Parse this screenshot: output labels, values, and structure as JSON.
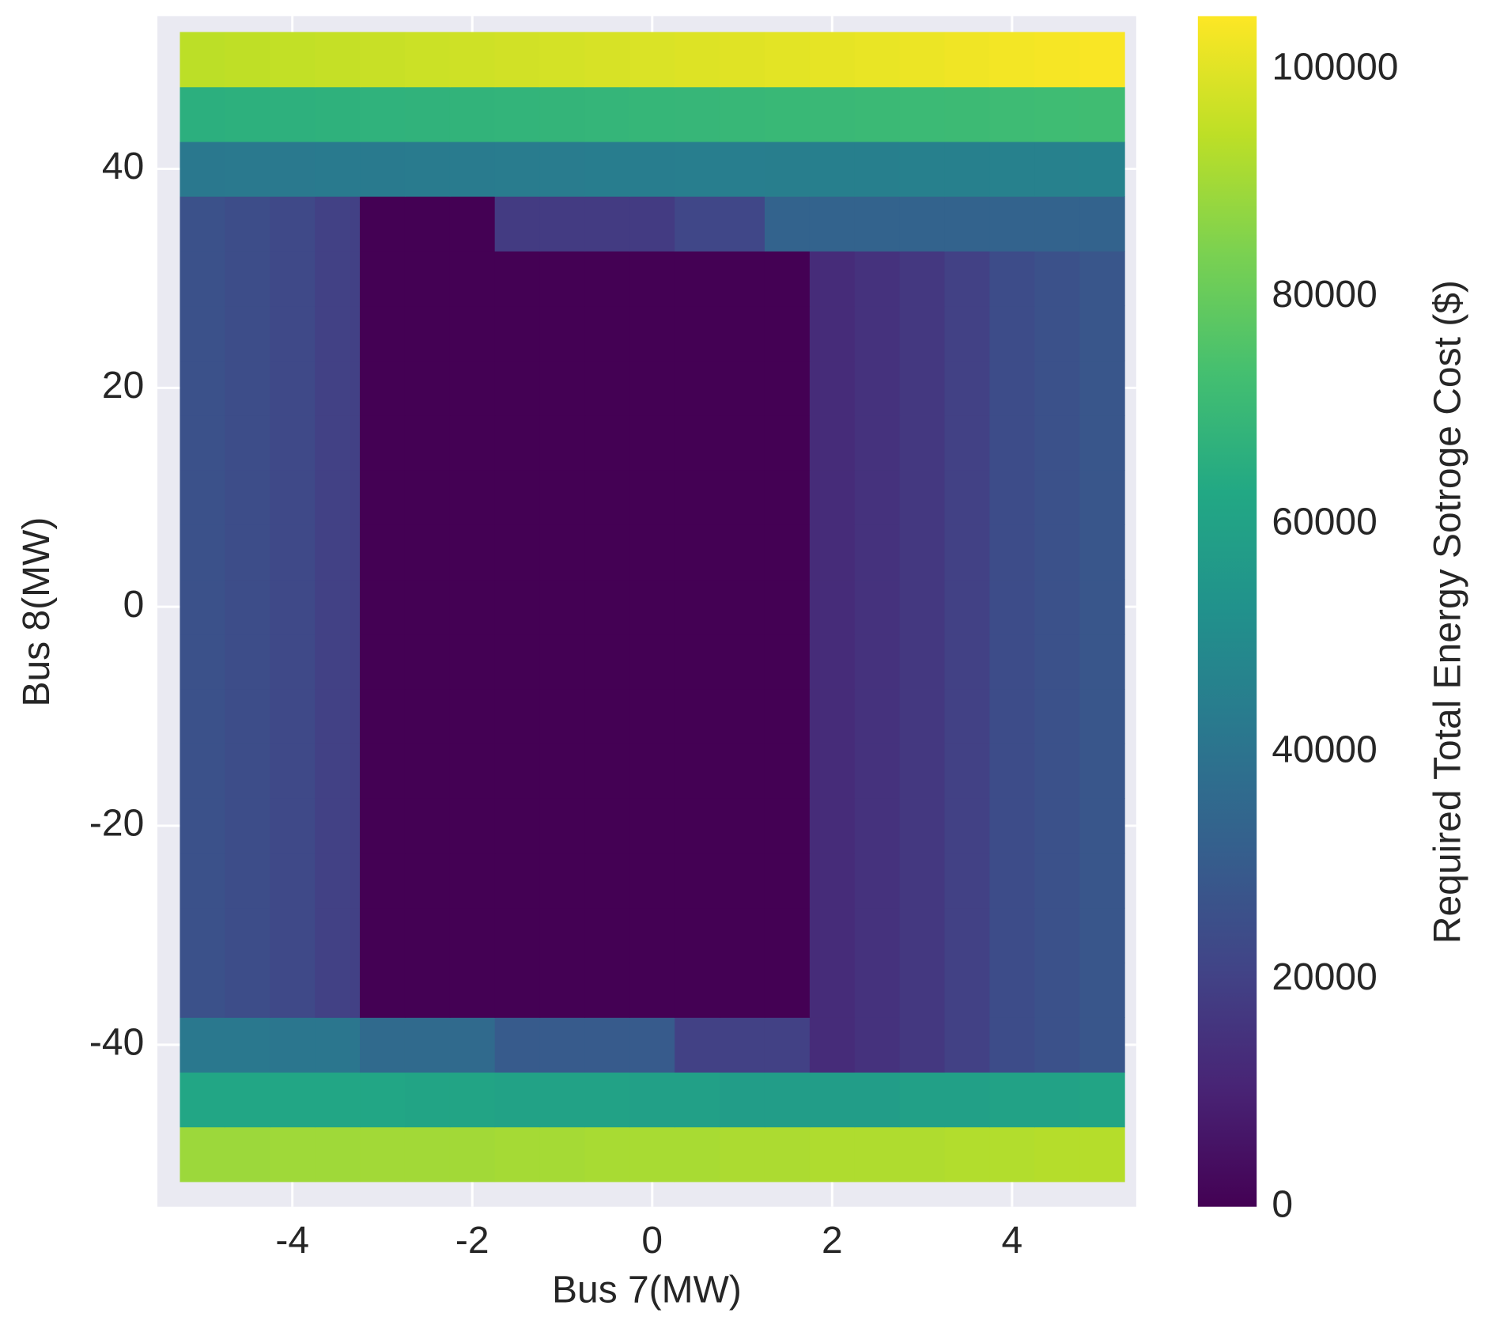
{
  "chart_data": {
    "type": "heatmap",
    "xlabel": "Bus 7(MW)",
    "ylabel": "Bus 8(MW)",
    "colorbar_label": "Required Total Energy Sotroge Cost ($)",
    "colormap": "viridis",
    "xlim": [
      -5.5,
      5.38
    ],
    "ylim": [
      -54.8,
      53.95
    ],
    "xticks": [
      -4,
      -2,
      0,
      2,
      4
    ],
    "yticks": [
      -40,
      -20,
      0,
      20,
      40
    ],
    "clim": [
      0,
      104700
    ],
    "cticks": [
      0,
      20000,
      40000,
      60000,
      80000,
      100000
    ],
    "grid": true,
    "x": [
      -5,
      -4.5,
      -4,
      -3.5,
      -3,
      -2.5,
      -2,
      -1.5,
      -1,
      -0.5,
      0,
      0.5,
      1,
      1.5,
      2,
      2.5,
      3,
      3.5,
      4,
      4.5,
      5
    ],
    "y": [
      -50,
      -45,
      -40,
      -35,
      -30,
      -25,
      -20,
      -15,
      -10,
      -5,
      0,
      5,
      10,
      15,
      20,
      25,
      30,
      35,
      40,
      45,
      50
    ],
    "z": [
      [
        89000,
        89000,
        89500,
        89500,
        90000,
        90000,
        90000,
        90500,
        90500,
        91000,
        91000,
        91000,
        91500,
        91500,
        92000,
        92000,
        92000,
        92500,
        92500,
        93000,
        93000
      ],
      [
        62000,
        62000,
        62000,
        62000,
        62000,
        61000,
        61000,
        60000,
        60000,
        60000,
        59000,
        59000,
        58000,
        58000,
        58000,
        58000,
        59000,
        59000,
        60000,
        60000,
        61000
      ],
      [
        42000,
        42000,
        41000,
        41000,
        36000,
        36000,
        36000,
        30000,
        30000,
        30000,
        30000,
        20000,
        20000,
        20000,
        13000,
        15000,
        17000,
        20000,
        24000,
        26000,
        28000
      ],
      [
        26000,
        24500,
        23000,
        20000,
        0,
        0,
        0,
        0,
        0,
        0,
        0,
        0,
        0,
        0,
        13000,
        15000,
        17000,
        20000,
        24000,
        26000,
        28000
      ],
      [
        26000,
        24500,
        23000,
        20000,
        0,
        0,
        0,
        0,
        0,
        0,
        0,
        0,
        0,
        0,
        13000,
        15000,
        17000,
        20000,
        24000,
        26000,
        28000
      ],
      [
        26000,
        24500,
        23000,
        20000,
        0,
        0,
        0,
        0,
        0,
        0,
        0,
        0,
        0,
        0,
        13000,
        15000,
        17000,
        20000,
        24000,
        26000,
        28000
      ],
      [
        26000,
        24500,
        23000,
        20000,
        0,
        0,
        0,
        0,
        0,
        0,
        0,
        0,
        0,
        0,
        13000,
        15000,
        17000,
        20000,
        24000,
        26000,
        28000
      ],
      [
        26000,
        24500,
        23000,
        20000,
        0,
        0,
        0,
        0,
        0,
        0,
        0,
        0,
        0,
        0,
        13000,
        15000,
        17000,
        20000,
        24000,
        26000,
        28000
      ],
      [
        26000,
        24500,
        23000,
        20000,
        0,
        0,
        0,
        0,
        0,
        0,
        0,
        0,
        0,
        0,
        13000,
        15000,
        17000,
        20000,
        24000,
        26000,
        28000
      ],
      [
        26000,
        24500,
        23000,
        20000,
        0,
        0,
        0,
        0,
        0,
        0,
        0,
        0,
        0,
        0,
        13000,
        15000,
        17000,
        20000,
        24000,
        26000,
        28000
      ],
      [
        26000,
        24500,
        23000,
        20000,
        0,
        0,
        0,
        0,
        0,
        0,
        0,
        0,
        0,
        0,
        13000,
        15000,
        17000,
        20000,
        24000,
        26000,
        28000
      ],
      [
        26000,
        24500,
        23000,
        20000,
        0,
        0,
        0,
        0,
        0,
        0,
        0,
        0,
        0,
        0,
        13000,
        15000,
        17000,
        20000,
        24000,
        26000,
        28000
      ],
      [
        26000,
        24500,
        23000,
        20000,
        0,
        0,
        0,
        0,
        0,
        0,
        0,
        0,
        0,
        0,
        13000,
        15000,
        17000,
        20000,
        24000,
        26000,
        28000
      ],
      [
        26000,
        24500,
        23000,
        20000,
        0,
        0,
        0,
        0,
        0,
        0,
        0,
        0,
        0,
        0,
        13000,
        15000,
        17000,
        20000,
        24000,
        26000,
        28000
      ],
      [
        26000,
        24500,
        23000,
        20000,
        0,
        0,
        0,
        0,
        0,
        0,
        0,
        0,
        0,
        0,
        13000,
        15000,
        17000,
        20000,
        24000,
        26000,
        28000
      ],
      [
        26000,
        24500,
        23000,
        20000,
        0,
        0,
        0,
        0,
        0,
        0,
        0,
        0,
        0,
        0,
        13000,
        15000,
        17000,
        20000,
        24000,
        26000,
        28000
      ],
      [
        26000,
        24500,
        23000,
        20000,
        0,
        0,
        0,
        0,
        0,
        0,
        0,
        0,
        0,
        0,
        13000,
        15000,
        17000,
        20000,
        24000,
        26000,
        28000
      ],
      [
        26000,
        24500,
        23000,
        20000,
        0,
        0,
        0,
        18000,
        18000,
        18000,
        18000,
        22000,
        22000,
        33000,
        33000,
        33000,
        33000,
        33000,
        33000,
        33000,
        33000
      ],
      [
        42000,
        42200,
        42400,
        42600,
        42800,
        43000,
        43200,
        43400,
        43600,
        43800,
        44000,
        44200,
        44400,
        44600,
        44800,
        45000,
        45200,
        45400,
        45600,
        45800,
        46000
      ],
      [
        66000,
        66300,
        66600,
        66900,
        67200,
        67500,
        67800,
        68100,
        68400,
        68700,
        69000,
        69300,
        69600,
        69900,
        70200,
        70500,
        70800,
        71100,
        71400,
        71700,
        72000
      ],
      [
        94000,
        94500,
        95000,
        95500,
        96000,
        96500,
        97000,
        97500,
        98000,
        98500,
        99000,
        99500,
        100000,
        100500,
        101000,
        101500,
        102000,
        102500,
        103000,
        103500,
        104000
      ]
    ]
  }
}
